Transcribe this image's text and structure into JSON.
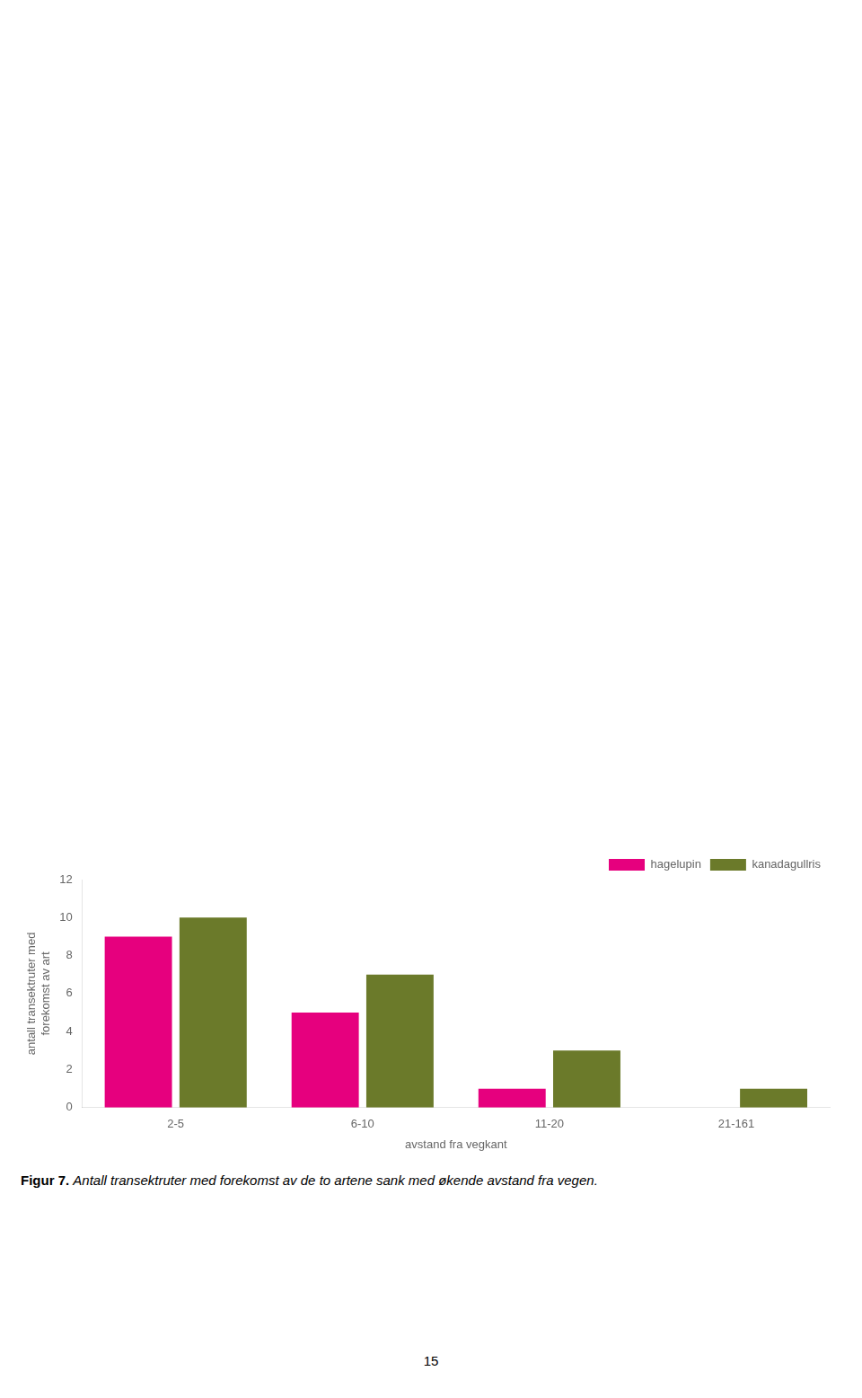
{
  "chart_data": {
    "type": "bar",
    "categories": [
      "2-5",
      "6-10",
      "11-20",
      "21-161"
    ],
    "series": [
      {
        "name": "hagelupin",
        "color": "#e6007e",
        "values": [
          9,
          5,
          1,
          0
        ]
      },
      {
        "name": "kanadagullris",
        "color": "#6b7a2a",
        "values": [
          10,
          7,
          3,
          1
        ]
      }
    ],
    "xlabel": "avstand fra vegkant",
    "ylabel": "antall transektruter med\nforekomst av art",
    "ylim": [
      0,
      12
    ],
    "yticks": [
      0,
      2,
      4,
      6,
      8,
      10,
      12
    ],
    "grid": false,
    "legend": "upper right",
    "annotations": [
      "Figur 7.",
      "Antall transektruter med forekomst av de to artene sank med økende avstand fra vegen.",
      "15"
    ]
  }
}
